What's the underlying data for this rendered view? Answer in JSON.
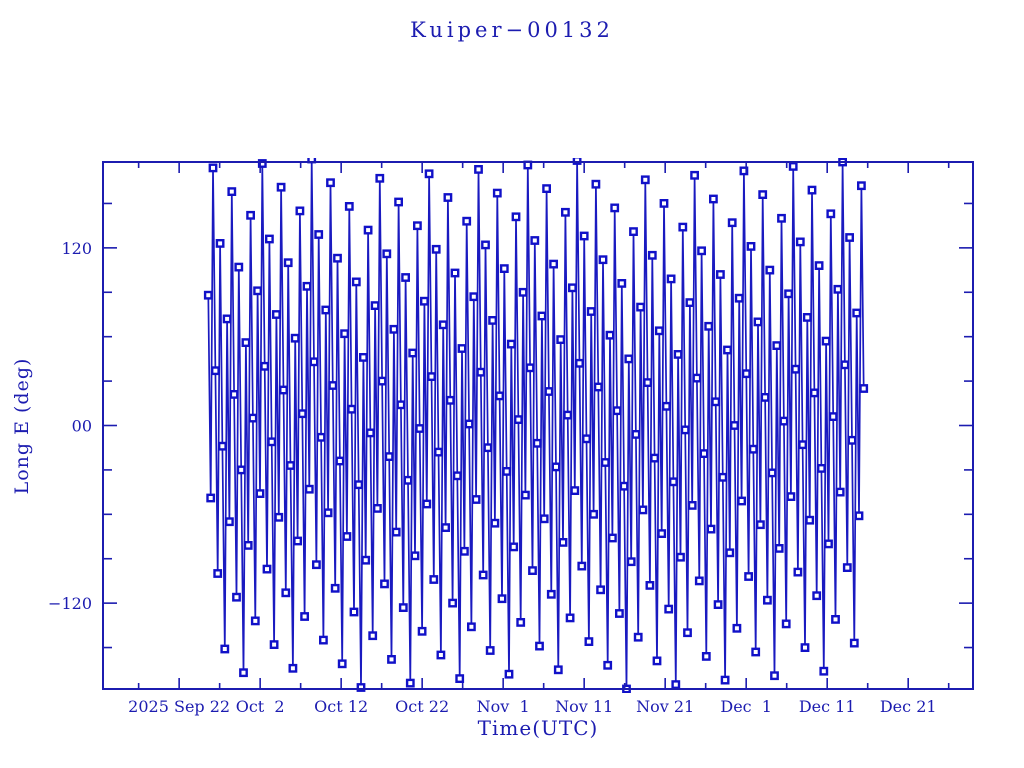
{
  "page": {
    "background": "#ffffff"
  },
  "chart_data": {
    "type": "line",
    "title": "Kuiper−00132",
    "xlabel": "Time(UTC)",
    "ylabel": "Long E (deg)",
    "legend": "none",
    "grid": false,
    "marker": "open-square",
    "colors": {
      "frame": "#1c1cb0",
      "text": "#1c1cb0",
      "line": "#1a1ac0",
      "marker_stroke": "#1111c8",
      "marker_fill": "#ffffff"
    },
    "x_unit": "days since 2025 Sep 22 00:00 UTC",
    "xlim": [
      -9.4,
      98.0
    ],
    "ylim": [
      -178,
      178
    ],
    "x_ticks": {
      "major_days": [
        0,
        10,
        20,
        30,
        40,
        50,
        60,
        70,
        80,
        90
      ],
      "major_labels": [
        "2025 Sep 22",
        "Oct  2",
        "Oct 12",
        "Oct 22",
        "Nov  1",
        "Nov 11",
        "Nov 21",
        "Dec  1",
        "Dec 11",
        "Dec 21"
      ],
      "minor_days": [
        -5,
        5,
        15,
        25,
        35,
        45,
        55,
        65,
        75,
        85,
        95
      ]
    },
    "y_ticks": {
      "major": [
        120,
        0,
        -120
      ],
      "major_labels": [
        "120",
        "00",
        "−120"
      ],
      "minor": [
        -150,
        -90,
        -60,
        -30,
        30,
        60,
        90,
        150
      ]
    },
    "series_name": "Long E",
    "x_start": 3.6,
    "x_step": 0.29,
    "y": [
      88,
      -49,
      174,
      37,
      -100,
      123,
      -14,
      -151,
      72,
      -65,
      158,
      21,
      -116,
      107,
      -30,
      -167,
      56,
      -81,
      142,
      5,
      -132,
      91,
      -46,
      177,
      40,
      -97,
      126,
      -11,
      -148,
      75,
      -62,
      161,
      24,
      -113,
      110,
      -27,
      -164,
      59,
      -78,
      145,
      8,
      -129,
      94,
      -43,
      180,
      43,
      -94,
      129,
      -8,
      -145,
      78,
      -59,
      164,
      27,
      -110,
      113,
      -24,
      -161,
      62,
      -75,
      148,
      11,
      -126,
      97,
      -40,
      -177,
      46,
      -91,
      132,
      -5,
      -142,
      81,
      -56,
      167,
      30,
      -107,
      116,
      -21,
      -158,
      65,
      -72,
      151,
      14,
      -123,
      100,
      -37,
      -174,
      49,
      -88,
      135,
      -2,
      -139,
      84,
      -53,
      170,
      33,
      -104,
      119,
      -18,
      -155,
      68,
      -69,
      154,
      17,
      -120,
      103,
      -34,
      -171,
      52,
      -85,
      138,
      1,
      -136,
      87,
      -50,
      173,
      36,
      -101,
      122,
      -15,
      -152,
      71,
      -66,
      157,
      20,
      -117,
      106,
      -31,
      -168,
      55,
      -82,
      141,
      4,
      -133,
      90,
      -47,
      176,
      39,
      -98,
      125,
      -12,
      -149,
      74,
      -63,
      160,
      23,
      -114,
      109,
      -28,
      -165,
      58,
      -79,
      144,
      7,
      -130,
      93,
      -44,
      179,
      42,
      -95,
      128,
      -9,
      -146,
      77,
      -60,
      163,
      26,
      -111,
      112,
      -25,
      -162,
      61,
      -76,
      147,
      10,
      -127,
      96,
      -41,
      -178,
      45,
      -92,
      131,
      -6,
      -143,
      80,
      -57,
      166,
      29,
      -108,
      115,
      -22,
      -159,
      64,
      -73,
      150,
      13,
      -124,
      99,
      -38,
      -175,
      48,
      -89,
      134,
      -3,
      -140,
      83,
      -54,
      169,
      32,
      -105,
      118,
      -19,
      -156,
      67,
      -70,
      153,
      16,
      -121,
      102,
      -35,
      -172,
      51,
      -86,
      137,
      0,
      -137,
      86,
      -51,
      172,
      35,
      -102,
      121,
      -16,
      -153,
      70,
      -67,
      156,
      19,
      -118,
      105,
      -32,
      -169,
      54,
      -83,
      140,
      3,
      -134,
      89,
      -48,
      175,
      38,
      -99,
      124,
      -13,
      -150,
      73,
      -64,
      159,
      22,
      -115,
      108,
      -29,
      -166,
      57,
      -80,
      143,
      6,
      -131,
      92,
      -45,
      178,
      41,
      -96,
      127,
      -10,
      -147,
      76,
      -61,
      162,
      25
    ]
  }
}
